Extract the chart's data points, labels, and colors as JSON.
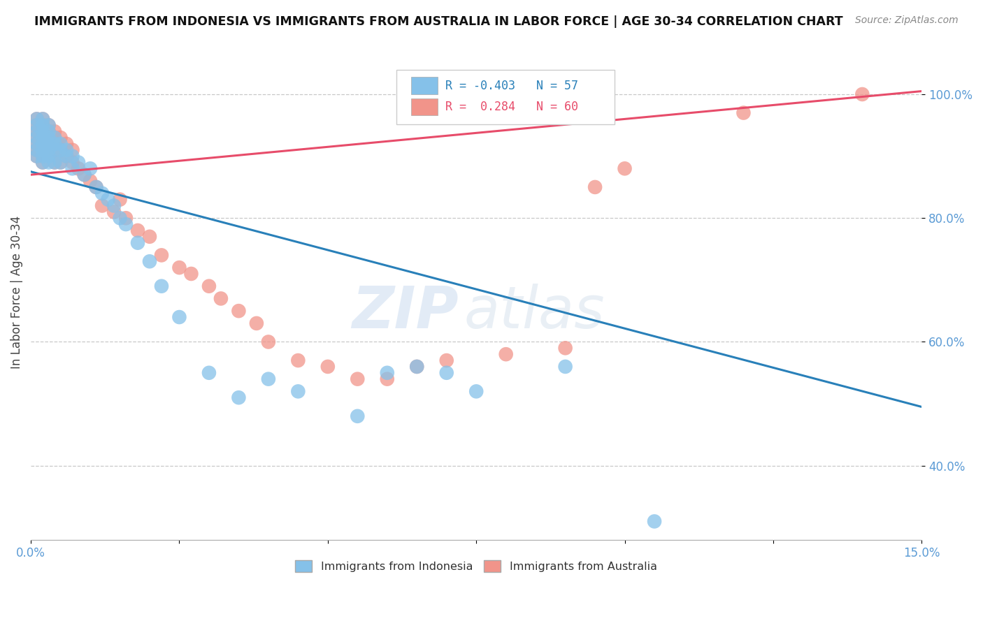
{
  "title": "IMMIGRANTS FROM INDONESIA VS IMMIGRANTS FROM AUSTRALIA IN LABOR FORCE | AGE 30-34 CORRELATION CHART",
  "source": "Source: ZipAtlas.com",
  "ylabel": "In Labor Force | Age 30-34",
  "xlim": [
    0.0,
    0.15
  ],
  "ylim": [
    0.28,
    1.08
  ],
  "xtick_positions": [
    0.0,
    0.025,
    0.05,
    0.075,
    0.1,
    0.125,
    0.15
  ],
  "xtick_labels": [
    "0.0%",
    "",
    "",
    "",
    "",
    "",
    "15.0%"
  ],
  "ytick_positions": [
    0.4,
    0.6,
    0.8,
    1.0
  ],
  "ytick_labels": [
    "40.0%",
    "60.0%",
    "80.0%",
    "100.0%"
  ],
  "indonesia_color": "#85C1E9",
  "australia_color": "#F1948A",
  "indonesia_line_color": "#2980B9",
  "australia_line_color": "#E74C6A",
  "indonesia_R": -0.403,
  "indonesia_N": 57,
  "australia_R": 0.284,
  "australia_N": 60,
  "indo_line_x0": 0.0,
  "indo_line_y0": 0.875,
  "indo_line_x1": 0.15,
  "indo_line_y1": 0.495,
  "aus_line_x0": 0.0,
  "aus_line_y0": 0.87,
  "aus_line_x1": 0.15,
  "aus_line_y1": 1.005,
  "indonesia_x": [
    0.001,
    0.001,
    0.001,
    0.001,
    0.001,
    0.001,
    0.001,
    0.002,
    0.002,
    0.002,
    0.002,
    0.002,
    0.002,
    0.002,
    0.002,
    0.003,
    0.003,
    0.003,
    0.003,
    0.003,
    0.003,
    0.003,
    0.004,
    0.004,
    0.004,
    0.004,
    0.005,
    0.005,
    0.005,
    0.006,
    0.006,
    0.007,
    0.007,
    0.008,
    0.009,
    0.01,
    0.011,
    0.012,
    0.013,
    0.014,
    0.015,
    0.016,
    0.018,
    0.02,
    0.022,
    0.025,
    0.03,
    0.035,
    0.04,
    0.045,
    0.055,
    0.06,
    0.065,
    0.07,
    0.075,
    0.09,
    0.105
  ],
  "indonesia_y": [
    0.96,
    0.95,
    0.94,
    0.93,
    0.92,
    0.91,
    0.9,
    0.96,
    0.95,
    0.94,
    0.93,
    0.92,
    0.91,
    0.9,
    0.89,
    0.95,
    0.94,
    0.93,
    0.92,
    0.91,
    0.9,
    0.89,
    0.93,
    0.92,
    0.91,
    0.89,
    0.92,
    0.91,
    0.89,
    0.91,
    0.9,
    0.9,
    0.88,
    0.89,
    0.87,
    0.88,
    0.85,
    0.84,
    0.83,
    0.82,
    0.8,
    0.79,
    0.76,
    0.73,
    0.69,
    0.64,
    0.55,
    0.51,
    0.54,
    0.52,
    0.48,
    0.55,
    0.56,
    0.55,
    0.52,
    0.56,
    0.31
  ],
  "australia_x": [
    0.001,
    0.001,
    0.001,
    0.001,
    0.001,
    0.001,
    0.001,
    0.002,
    0.002,
    0.002,
    0.002,
    0.002,
    0.002,
    0.002,
    0.003,
    0.003,
    0.003,
    0.003,
    0.003,
    0.004,
    0.004,
    0.004,
    0.004,
    0.005,
    0.005,
    0.005,
    0.006,
    0.006,
    0.007,
    0.007,
    0.008,
    0.009,
    0.01,
    0.011,
    0.012,
    0.014,
    0.015,
    0.016,
    0.018,
    0.02,
    0.022,
    0.025,
    0.027,
    0.03,
    0.032,
    0.035,
    0.038,
    0.04,
    0.045,
    0.05,
    0.055,
    0.06,
    0.065,
    0.07,
    0.08,
    0.09,
    0.095,
    0.1,
    0.12,
    0.14
  ],
  "australia_y": [
    0.96,
    0.95,
    0.94,
    0.93,
    0.92,
    0.91,
    0.9,
    0.96,
    0.95,
    0.94,
    0.93,
    0.91,
    0.9,
    0.89,
    0.95,
    0.94,
    0.93,
    0.92,
    0.9,
    0.94,
    0.93,
    0.91,
    0.89,
    0.93,
    0.91,
    0.89,
    0.92,
    0.9,
    0.91,
    0.89,
    0.88,
    0.87,
    0.86,
    0.85,
    0.82,
    0.81,
    0.83,
    0.8,
    0.78,
    0.77,
    0.74,
    0.72,
    0.71,
    0.69,
    0.67,
    0.65,
    0.63,
    0.6,
    0.57,
    0.56,
    0.54,
    0.54,
    0.56,
    0.57,
    0.58,
    0.59,
    0.85,
    0.88,
    0.97,
    1.0
  ]
}
